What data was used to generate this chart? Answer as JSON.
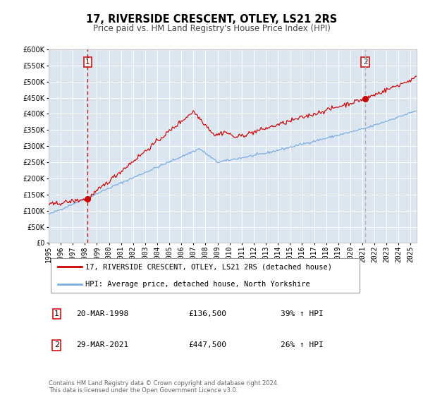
{
  "title": "17, RIVERSIDE CRESCENT, OTLEY, LS21 2RS",
  "subtitle": "Price paid vs. HM Land Registry's House Price Index (HPI)",
  "ylim": [
    0,
    600000
  ],
  "yticks": [
    0,
    50000,
    100000,
    150000,
    200000,
    250000,
    300000,
    350000,
    400000,
    450000,
    500000,
    550000,
    600000
  ],
  "xlim_start": 1995.0,
  "xlim_end": 2025.5,
  "background_color": "#ffffff",
  "plot_bg_color": "#dce6f1",
  "grid_color": "#ffffff",
  "red_line_color": "#cc0000",
  "blue_line_color": "#7aabe0",
  "vline1_x": 1998.22,
  "vline2_x": 2021.24,
  "marker1_x": 1998.22,
  "marker1_y": 136500,
  "marker2_x": 2021.24,
  "marker2_y": 447500,
  "label1_num": "1",
  "label2_num": "2",
  "legend_red": "17, RIVERSIDE CRESCENT, OTLEY, LS21 2RS (detached house)",
  "legend_blue": "HPI: Average price, detached house, North Yorkshire",
  "annotation1_num": "1",
  "annotation1_date": "20-MAR-1998",
  "annotation1_price": "£136,500",
  "annotation1_hpi": "39% ↑ HPI",
  "annotation2_num": "2",
  "annotation2_date": "29-MAR-2021",
  "annotation2_price": "£447,500",
  "annotation2_hpi": "26% ↑ HPI",
  "footer": "Contains HM Land Registry data © Crown copyright and database right 2024.\nThis data is licensed under the Open Government Licence v3.0.",
  "title_fontsize": 10.5,
  "subtitle_fontsize": 8.5,
  "tick_fontsize": 7,
  "legend_fontsize": 7.5,
  "annotation_fontsize": 8,
  "footer_fontsize": 6
}
